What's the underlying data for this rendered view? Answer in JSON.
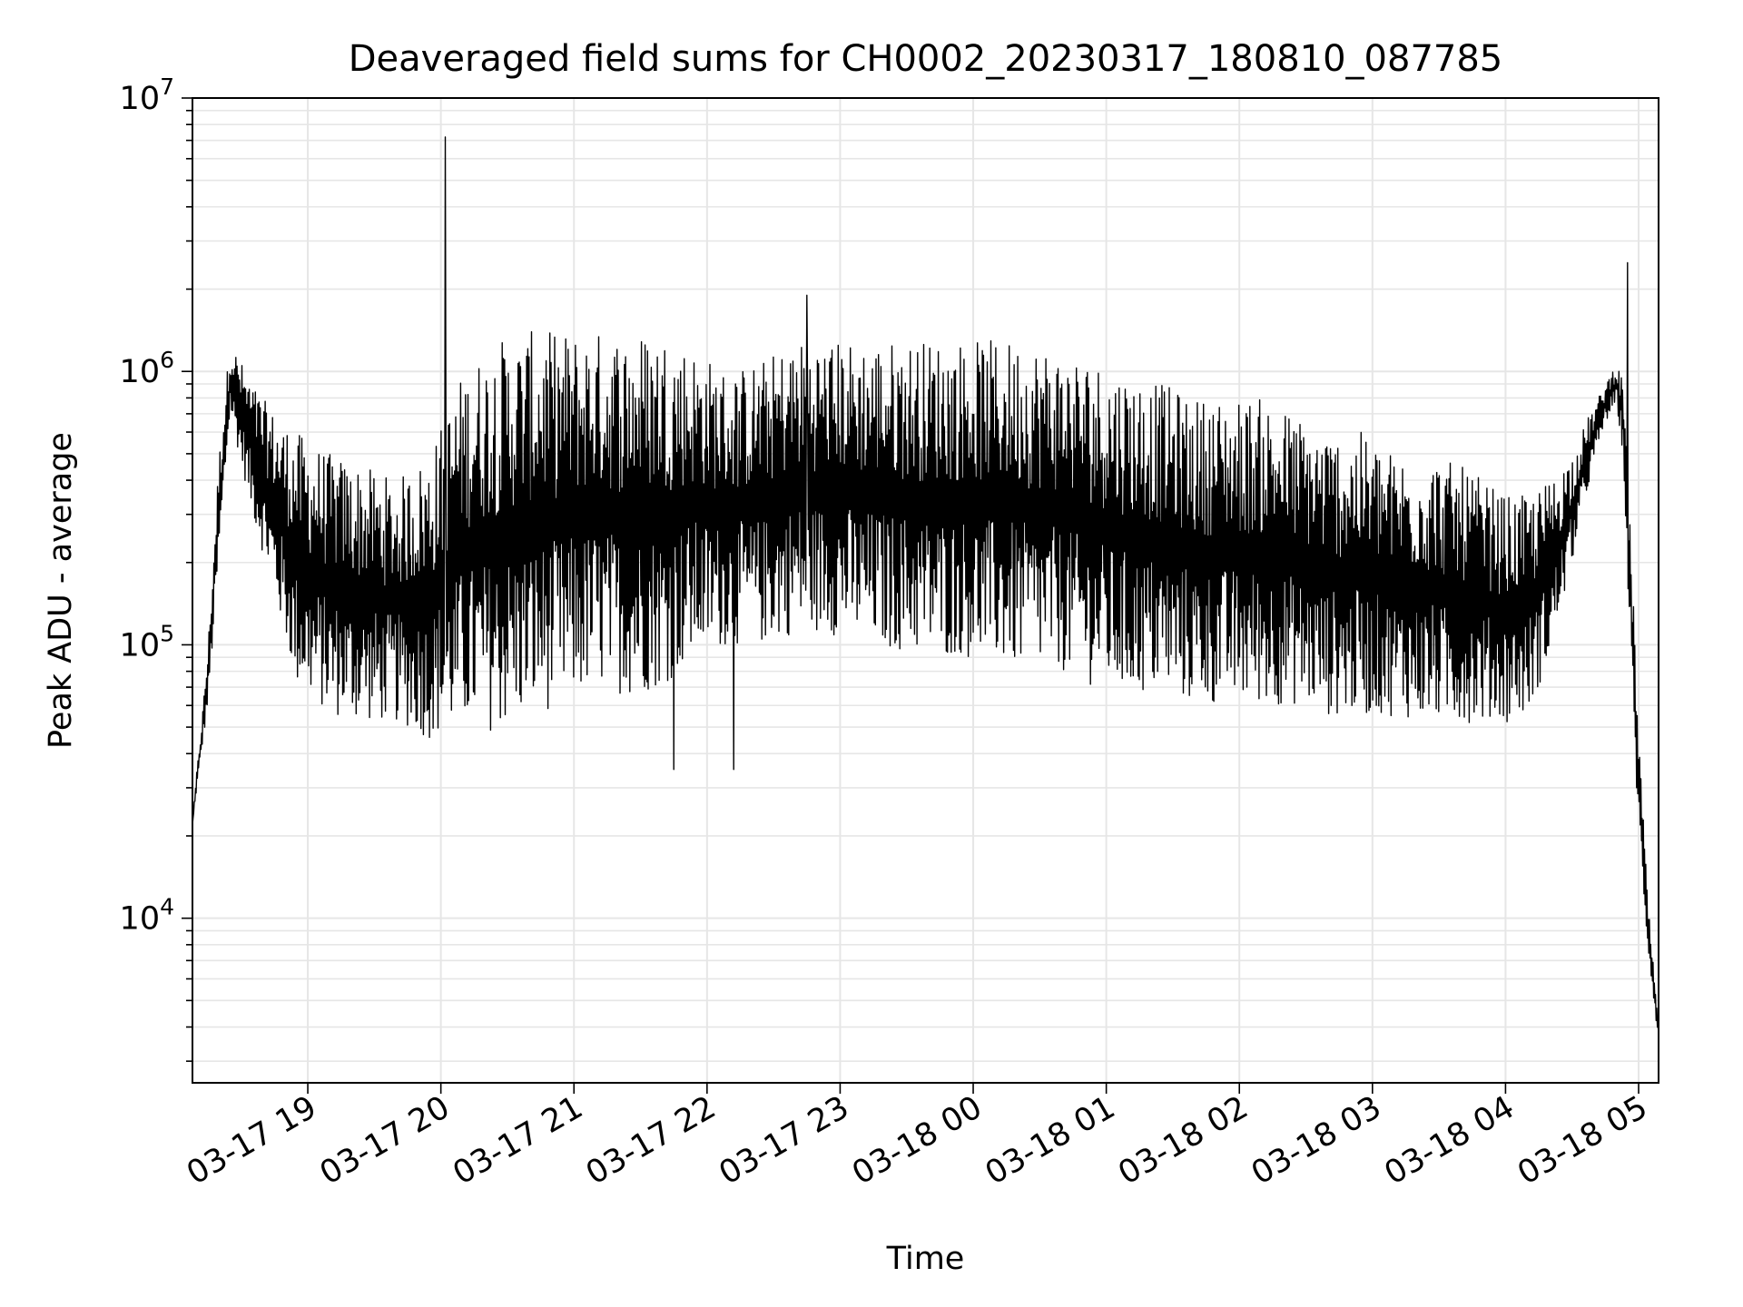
{
  "chart_data": {
    "type": "line",
    "title": "Deaveraged field sums for CH0002_20230317_180810_087785",
    "xlabel": "Time",
    "ylabel": "Peak ADU - average",
    "yscale": "log",
    "ylim": [
      2500,
      10000000
    ],
    "xlim": [
      "03-17 18:08",
      "03-18 05:09"
    ],
    "grid": true,
    "line_color": "#000000",
    "grid_color": "#e6e6e6",
    "x_ticks": [
      "03-17 19",
      "03-17 20",
      "03-17 21",
      "03-17 22",
      "03-17 23",
      "03-18 00",
      "03-18 01",
      "03-18 02",
      "03-18 03",
      "03-18 04",
      "03-18 05"
    ],
    "y_ticks": [
      {
        "base": "10",
        "exp": "4",
        "value": 10000
      },
      {
        "base": "10",
        "exp": "5",
        "value": 100000
      },
      {
        "base": "10",
        "exp": "6",
        "value": 1000000
      },
      {
        "base": "10",
        "exp": "7",
        "value": 10000000
      }
    ],
    "envelope": {
      "x": [
        "03-17 18:08",
        "03-17 18:10",
        "03-17 18:12",
        "03-17 18:15",
        "03-17 18:20",
        "03-17 18:25",
        "03-17 18:35",
        "03-17 18:45",
        "03-17 18:55",
        "03-17 19:10",
        "03-17 19:25",
        "03-17 19:40",
        "03-17 19:55",
        "03-17 20:10",
        "03-17 20:25",
        "03-17 20:40",
        "03-17 20:55",
        "03-17 21:10",
        "03-17 21:25",
        "03-17 21:40",
        "03-17 21:55",
        "03-17 22:10",
        "03-17 22:25",
        "03-17 22:40",
        "03-17 22:55",
        "03-17 23:10",
        "03-17 23:25",
        "03-17 23:40",
        "03-17 23:55",
        "03-18 00:10",
        "03-18 00:25",
        "03-18 00:40",
        "03-18 00:55",
        "03-18 01:10",
        "03-18 01:25",
        "03-18 01:40",
        "03-18 01:55",
        "03-18 02:10",
        "03-18 02:25",
        "03-18 02:40",
        "03-18 02:55",
        "03-18 03:10",
        "03-18 03:25",
        "03-18 03:40",
        "03-18 03:50",
        "03-18 04:00",
        "03-18 04:10",
        "03-18 04:20",
        "03-18 04:30",
        "03-18 04:38",
        "03-18 04:45",
        "03-18 04:50",
        "03-18 04:53",
        "03-18 04:56",
        "03-18 05:00",
        "03-18 05:04",
        "03-18 05:09"
      ],
      "low": [
        22000,
        30000,
        40000,
        60000,
        200000,
        700000,
        300000,
        150000,
        70000,
        55000,
        52000,
        52000,
        45000,
        50000,
        48000,
        55000,
        60000,
        70000,
        65000,
        70000,
        90000,
        100000,
        100000,
        110000,
        110000,
        100000,
        95000,
        90000,
        90000,
        85000,
        80000,
        80000,
        70000,
        65000,
        65000,
        60000,
        60000,
        60000,
        60000,
        55000,
        55000,
        55000,
        52000,
        52000,
        52000,
        52000,
        55000,
        90000,
        200000,
        400000,
        650000,
        750000,
        500000,
        100000,
        20000,
        8000,
        3500
      ],
      "high": [
        22000,
        35000,
        50000,
        100000,
        500000,
        1300000,
        900000,
        700000,
        600000,
        500000,
        450000,
        400000,
        500000,
        1000000,
        1300000,
        1400000,
        1400000,
        1400000,
        1400000,
        1400000,
        1200000,
        1000000,
        1100000,
        1300000,
        1300000,
        1300000,
        1300000,
        1300000,
        1300000,
        1300000,
        1300000,
        1200000,
        1100000,
        1000000,
        900000,
        800000,
        800000,
        800000,
        700000,
        600000,
        600000,
        500000,
        500000,
        450000,
        400000,
        350000,
        350000,
        400000,
        500000,
        700000,
        900000,
        1100000,
        900000,
        300000,
        50000,
        12000,
        4000
      ]
    },
    "spikes": [
      {
        "x": "03-17 20:02",
        "y": 7200000
      },
      {
        "x": "03-17 22:45",
        "y": 1900000
      },
      {
        "x": "03-18 04:55",
        "y": 2500000
      },
      {
        "x": "03-17 21:45",
        "y": 35000
      },
      {
        "x": "03-17 22:12",
        "y": 35000
      }
    ]
  }
}
